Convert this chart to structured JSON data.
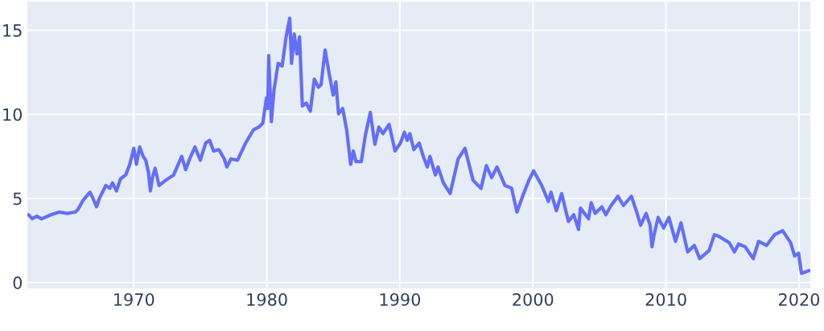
{
  "chart_data": {
    "type": "line",
    "xlim": [
      1962.0,
      2020.85
    ],
    "ylim": [
      -0.35,
      16.7
    ],
    "xticks": [
      1970,
      1980,
      1990,
      2000,
      2010,
      2020
    ],
    "yticks": [
      0,
      5,
      10,
      15
    ],
    "grid": true,
    "marker": "none",
    "line_style": "solid",
    "series": [
      {
        "color": "#636efa",
        "x": [
          1962.09,
          1962.37,
          1962.7,
          1963.07,
          1963.78,
          1964.4,
          1965.0,
          1965.6,
          1965.8,
          1966.2,
          1966.7,
          1966.9,
          1967.2,
          1967.4,
          1967.9,
          1968.2,
          1968.4,
          1968.7,
          1969.0,
          1969.4,
          1969.7,
          1970.0,
          1970.2,
          1970.44,
          1970.7,
          1970.9,
          1971.1,
          1971.25,
          1971.4,
          1971.6,
          1971.9,
          1972.4,
          1973.0,
          1973.6,
          1973.9,
          1974.2,
          1974.6,
          1975.0,
          1975.4,
          1975.7,
          1976.0,
          1976.4,
          1976.8,
          1977.0,
          1977.3,
          1977.8,
          1978.4,
          1979.0,
          1979.4,
          1979.7,
          1979.97,
          1980.07,
          1980.14,
          1980.34,
          1980.54,
          1980.85,
          1981.15,
          1981.45,
          1981.72,
          1981.86,
          1982.06,
          1982.26,
          1982.46,
          1982.67,
          1982.97,
          1983.27,
          1983.57,
          1983.88,
          1984.08,
          1984.38,
          1984.69,
          1984.99,
          1985.19,
          1985.39,
          1985.7,
          1986.0,
          1986.3,
          1986.5,
          1986.7,
          1987.1,
          1987.41,
          1987.78,
          1988.12,
          1988.42,
          1988.73,
          1989.19,
          1989.64,
          1990.04,
          1990.34,
          1990.55,
          1990.75,
          1991.05,
          1991.45,
          1991.76,
          1992.06,
          1992.26,
          1992.67,
          1992.87,
          1993.27,
          1993.78,
          1994.38,
          1994.89,
          1995.5,
          1996.1,
          1996.5,
          1996.9,
          1997.3,
          1997.9,
          1998.4,
          1998.8,
          1999.3,
          1999.7,
          2000.05,
          2000.66,
          2001.16,
          2001.36,
          2001.76,
          2002.16,
          2002.67,
          2003.07,
          2003.43,
          2003.57,
          2004.18,
          2004.38,
          2004.68,
          2005.18,
          2005.48,
          2005.88,
          2006.39,
          2006.8,
          2007.4,
          2007.8,
          2008.1,
          2008.51,
          2008.81,
          2008.95,
          2009.11,
          2009.41,
          2009.82,
          2010.22,
          2010.72,
          2011.13,
          2011.63,
          2012.13,
          2012.54,
          2013.24,
          2013.64,
          2013.94,
          2014.75,
          2015.15,
          2015.45,
          2015.95,
          2016.56,
          2016.96,
          2017.56,
          2018.16,
          2018.77,
          2019.37,
          2019.67,
          2019.97,
          2020.18,
          2020.78
        ],
        "values": [
          4.03,
          3.79,
          3.95,
          3.79,
          4.03,
          4.19,
          4.11,
          4.19,
          4.34,
          4.9,
          5.37,
          5.06,
          4.5,
          4.98,
          5.77,
          5.6,
          5.92,
          5.45,
          6.16,
          6.4,
          7.03,
          7.98,
          7.03,
          8.06,
          7.5,
          7.27,
          6.56,
          5.45,
          6.24,
          6.79,
          5.77,
          6.08,
          6.4,
          7.5,
          6.71,
          7.35,
          8.06,
          7.27,
          8.29,
          8.45,
          7.82,
          7.9,
          7.35,
          6.87,
          7.35,
          7.27,
          8.29,
          9.08,
          9.24,
          9.48,
          10.98,
          10.35,
          13.5,
          9.56,
          11.45,
          13.03,
          12.87,
          14.61,
          15.72,
          13.03,
          14.77,
          13.59,
          14.61,
          10.5,
          10.66,
          10.19,
          12.09,
          11.61,
          11.77,
          13.82,
          12.4,
          11.14,
          11.93,
          10.03,
          10.35,
          9.08,
          7.03,
          7.82,
          7.19,
          7.19,
          8.77,
          10.11,
          8.21,
          9.24,
          8.85,
          9.4,
          7.82,
          8.29,
          8.93,
          8.45,
          8.85,
          7.9,
          8.29,
          7.5,
          6.87,
          7.5,
          6.4,
          6.87,
          5.92,
          5.29,
          7.35,
          7.98,
          6.08,
          5.6,
          6.95,
          6.24,
          6.87,
          5.77,
          5.6,
          4.19,
          5.29,
          6.08,
          6.64,
          5.77,
          4.82,
          5.37,
          4.27,
          5.29,
          3.63,
          4.03,
          3.16,
          4.42,
          3.79,
          4.74,
          4.11,
          4.5,
          4.03,
          4.58,
          5.13,
          4.58,
          5.13,
          4.19,
          3.4,
          4.11,
          3.4,
          2.13,
          2.84,
          3.87,
          3.24,
          3.87,
          2.45,
          3.55,
          1.82,
          2.21,
          1.42,
          1.9,
          2.84,
          2.76,
          2.37,
          1.82,
          2.29,
          2.13,
          1.42,
          2.45,
          2.21,
          2.84,
          3.08,
          2.37,
          1.58,
          1.74,
          0.55,
          0.71
        ]
      }
    ]
  }
}
